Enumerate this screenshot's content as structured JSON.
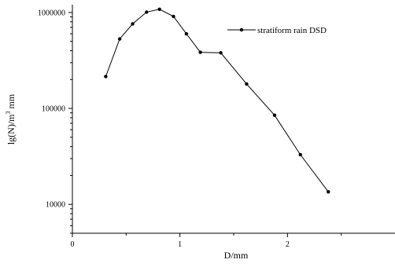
{
  "chart_data": {
    "type": "line",
    "title": "",
    "xlabel": "D/mm",
    "ylabel": "lg(N)/m3 mm",
    "ylabel_parts": {
      "before": "lg(N)/m",
      "sup": "3",
      "after": " mm"
    },
    "xlim": [
      0,
      3
    ],
    "ylim": [
      5000,
      1300000
    ],
    "y_scale": "log",
    "x_ticks": [
      0,
      1,
      2
    ],
    "x_tick_labels": [
      "0",
      "1",
      "2"
    ],
    "y_ticks": [
      10000,
      100000,
      1000000
    ],
    "y_tick_labels": [
      "10000",
      "100000",
      "1000000"
    ],
    "grid": false,
    "legend_position": "top-right",
    "series": [
      {
        "name": "stratiform  rain DSD",
        "color": "#000000",
        "marker": "circle",
        "x": [
          0.31,
          0.44,
          0.56,
          0.69,
          0.81,
          0.94,
          1.06,
          1.19,
          1.38,
          1.62,
          1.88,
          2.12,
          2.38
        ],
        "y": [
          215000,
          530000,
          760000,
          1010000,
          1080000,
          910000,
          600000,
          385000,
          380000,
          180000,
          85000,
          33000,
          13500
        ]
      }
    ]
  }
}
